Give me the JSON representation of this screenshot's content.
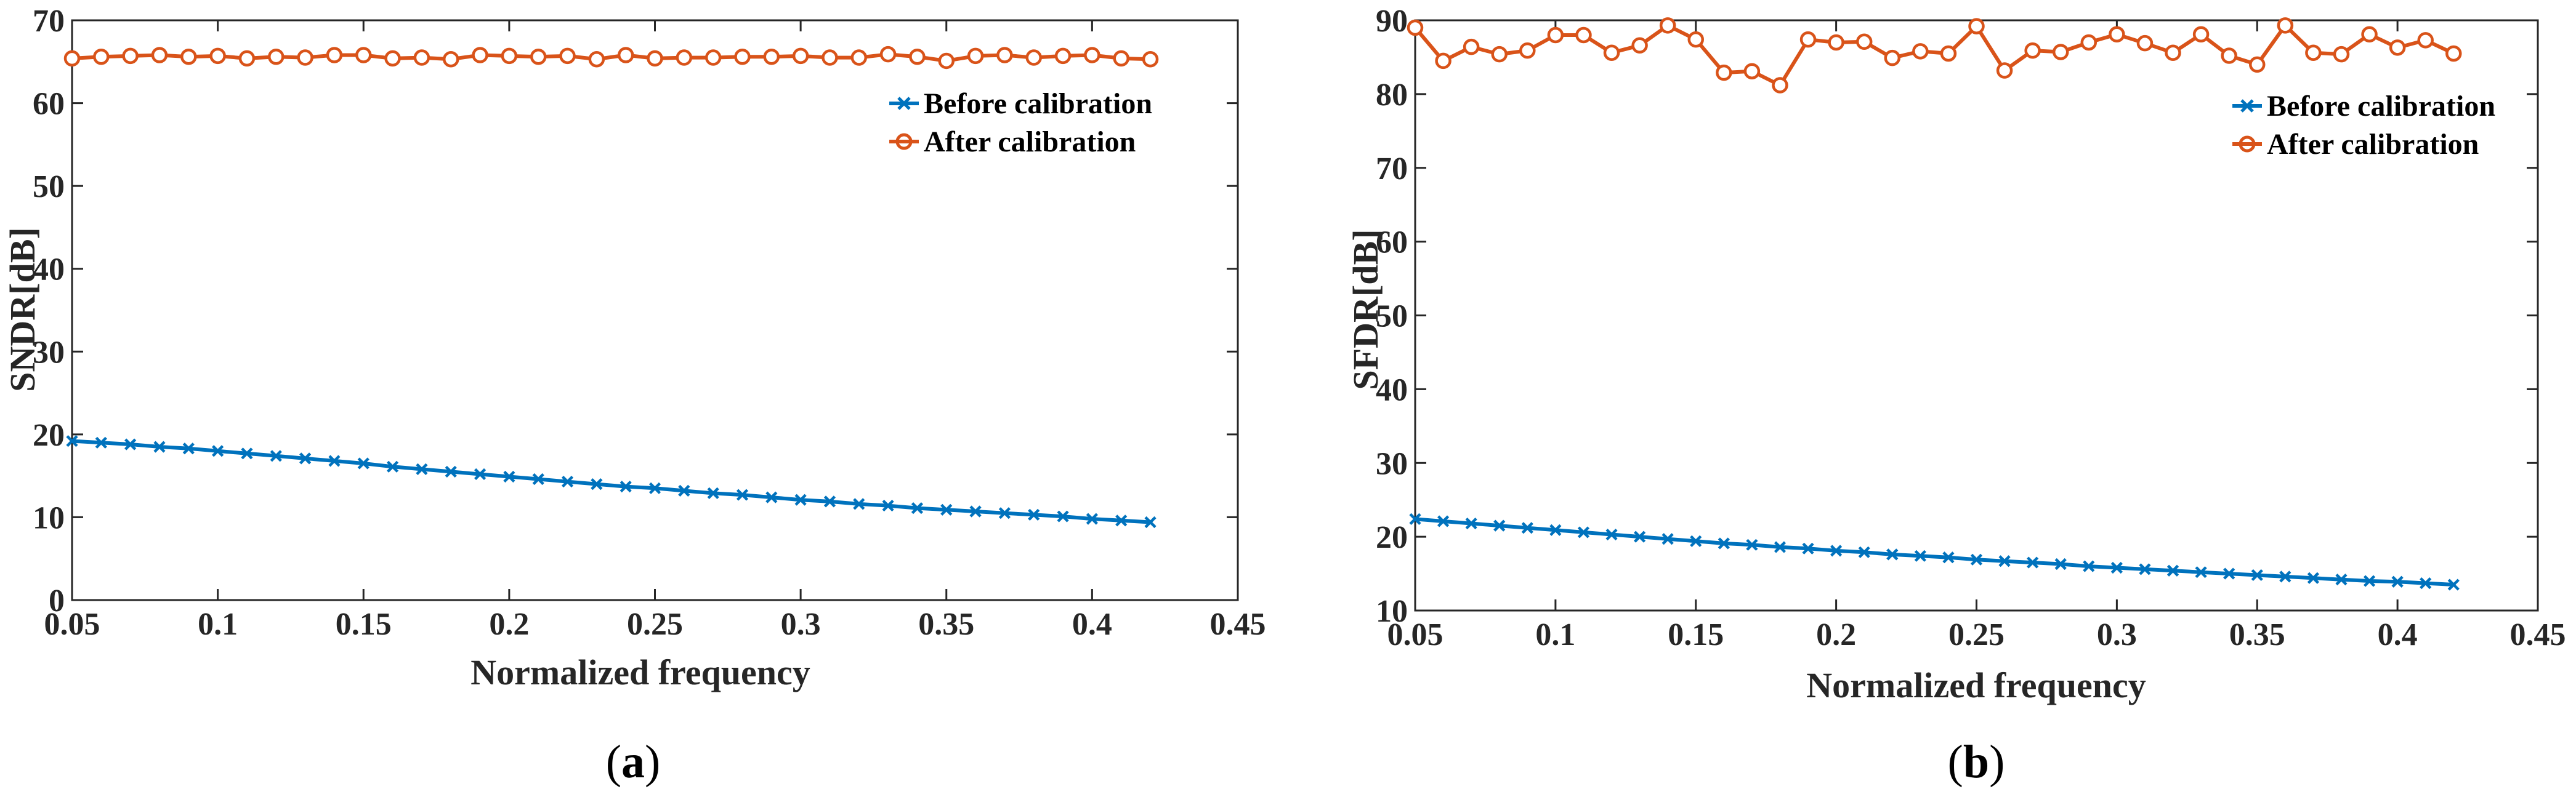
{
  "colors": {
    "before": "#0072BD",
    "after": "#D95319",
    "axis": "#262626"
  },
  "chart_data": [
    {
      "type": "line",
      "panel_label": "a",
      "xlabel": "Normalized frequency",
      "ylabel": "SNDR[dB]",
      "xlim": [
        0.05,
        0.45
      ],
      "ylim": [
        0,
        70
      ],
      "xticks": [
        0.05,
        0.1,
        0.15,
        0.2,
        0.25,
        0.3,
        0.35,
        0.4,
        0.45
      ],
      "xtick_labels": [
        "0.05",
        "0.1",
        "0.15",
        "0.2",
        "0.25",
        "0.3",
        "0.35",
        "0.4",
        "0.45"
      ],
      "yticks": [
        0,
        10,
        20,
        30,
        40,
        50,
        60,
        70
      ],
      "ytick_labels": [
        "0",
        "10",
        "20",
        "30",
        "40",
        "50",
        "60",
        "70"
      ],
      "legend_position": "top-right",
      "x": [
        0.05,
        0.06,
        0.07,
        0.08,
        0.09,
        0.1,
        0.11,
        0.12,
        0.13,
        0.14,
        0.15,
        0.16,
        0.17,
        0.18,
        0.19,
        0.2,
        0.21,
        0.22,
        0.23,
        0.24,
        0.25,
        0.26,
        0.27,
        0.28,
        0.29,
        0.3,
        0.31,
        0.32,
        0.33,
        0.34,
        0.35,
        0.36,
        0.37,
        0.38,
        0.39,
        0.4,
        0.41,
        0.42
      ],
      "series": [
        {
          "name": "Before calibration",
          "marker": "x",
          "values": [
            19.2,
            19.0,
            18.8,
            18.5,
            18.3,
            18.0,
            17.7,
            17.4,
            17.1,
            16.8,
            16.5,
            16.1,
            15.8,
            15.5,
            15.2,
            14.9,
            14.6,
            14.3,
            14.0,
            13.7,
            13.5,
            13.2,
            12.9,
            12.7,
            12.4,
            12.1,
            11.9,
            11.6,
            11.4,
            11.1,
            10.9,
            10.7,
            10.5,
            10.3,
            10.1,
            9.8,
            9.6,
            9.4
          ]
        },
        {
          "name": "After calibration",
          "marker": "o",
          "values": [
            65.4,
            65.6,
            65.7,
            65.8,
            65.6,
            65.7,
            65.4,
            65.6,
            65.5,
            65.8,
            65.8,
            65.4,
            65.5,
            65.3,
            65.8,
            65.7,
            65.6,
            65.7,
            65.3,
            65.8,
            65.4,
            65.5,
            65.5,
            65.6,
            65.6,
            65.7,
            65.5,
            65.5,
            65.9,
            65.6,
            65.1,
            65.7,
            65.8,
            65.5,
            65.7,
            65.8,
            65.4,
            65.3
          ]
        }
      ]
    },
    {
      "type": "line",
      "panel_label": "b",
      "xlabel": "Normalized frequency",
      "ylabel": "SFDR[dB]",
      "xlim": [
        0.05,
        0.45
      ],
      "ylim": [
        10,
        90
      ],
      "xticks": [
        0.05,
        0.1,
        0.15,
        0.2,
        0.25,
        0.3,
        0.35,
        0.4,
        0.45
      ],
      "xtick_labels": [
        "0.05",
        "0.1",
        "0.15",
        "0.2",
        "0.25",
        "0.3",
        "0.35",
        "0.4",
        "0.45"
      ],
      "yticks": [
        10,
        20,
        30,
        40,
        50,
        60,
        70,
        80,
        90
      ],
      "ytick_labels": [
        "10",
        "20",
        "30",
        "40",
        "50",
        "60",
        "70",
        "80",
        "90"
      ],
      "legend_position": "top-right",
      "x": [
        0.05,
        0.06,
        0.07,
        0.08,
        0.09,
        0.1,
        0.11,
        0.12,
        0.13,
        0.14,
        0.15,
        0.16,
        0.17,
        0.18,
        0.19,
        0.2,
        0.21,
        0.22,
        0.23,
        0.24,
        0.25,
        0.26,
        0.27,
        0.28,
        0.29,
        0.3,
        0.31,
        0.32,
        0.33,
        0.34,
        0.35,
        0.36,
        0.37,
        0.38,
        0.39,
        0.4,
        0.41,
        0.42
      ],
      "series": [
        {
          "name": "Before calibration",
          "marker": "x",
          "values": [
            22.4,
            22.1,
            21.8,
            21.5,
            21.2,
            20.9,
            20.6,
            20.3,
            20.0,
            19.7,
            19.4,
            19.1,
            18.9,
            18.6,
            18.4,
            18.1,
            17.9,
            17.6,
            17.4,
            17.2,
            16.9,
            16.7,
            16.5,
            16.3,
            16.0,
            15.8,
            15.6,
            15.4,
            15.2,
            15.0,
            14.8,
            14.6,
            14.4,
            14.2,
            14.0,
            13.9,
            13.7,
            13.5
          ]
        },
        {
          "name": "After calibration",
          "marker": "o",
          "values": [
            89.0,
            84.5,
            86.4,
            85.4,
            85.9,
            88.0,
            88.0,
            85.6,
            86.6,
            89.3,
            87.4,
            82.9,
            83.1,
            81.2,
            87.4,
            87.0,
            87.1,
            84.9,
            85.8,
            85.5,
            89.2,
            83.2,
            85.9,
            85.7,
            87.0,
            88.1,
            86.9,
            85.6,
            88.1,
            85.2,
            84.0,
            89.3,
            85.6,
            85.4,
            88.1,
            86.3,
            87.3,
            85.5
          ]
        }
      ]
    }
  ]
}
